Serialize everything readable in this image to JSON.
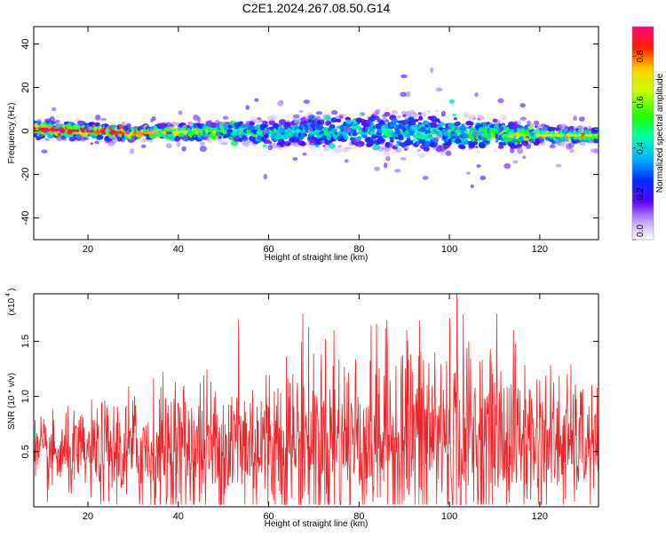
{
  "page": {
    "title": "C2E1.2024.267.08.50.G14"
  },
  "chart_data": [
    {
      "type": "heatmap",
      "title": "C2E1.2024.267.08.50.G14",
      "xlabel": "Height of straight line (km)",
      "ylabel": "Frequency (Hz)",
      "xlim": [
        8,
        133
      ],
      "ylim": [
        -50,
        48
      ],
      "xticks": [
        20,
        40,
        60,
        80,
        100,
        120
      ],
      "yticks": [
        40,
        20,
        0,
        -20,
        -40
      ],
      "colorbar": {
        "label": "Normalized spectral amplitude",
        "range": [
          0.0,
          0.93
        ],
        "ticks": [
          0.0,
          0.2,
          0.4,
          0.6,
          0.8
        ],
        "tick_labels": [
          "0.0",
          "0.2",
          "0.4",
          "0.6",
          "0.8"
        ]
      },
      "band": {
        "description": "energy concentrated near 0 Hz across all heights",
        "center_hz": [
          [
            8,
            1
          ],
          [
            30,
            -1
          ],
          [
            50,
            0
          ],
          [
            60,
            -1
          ],
          [
            80,
            0
          ],
          [
            100,
            -1
          ],
          [
            120,
            -2
          ],
          [
            133,
            -2
          ]
        ],
        "halfwidth_hz": [
          [
            8,
            4
          ],
          [
            30,
            3
          ],
          [
            50,
            4
          ],
          [
            60,
            6
          ],
          [
            70,
            7
          ],
          [
            80,
            8
          ],
          [
            92,
            10
          ],
          [
            100,
            8
          ],
          [
            110,
            7
          ],
          [
            120,
            4
          ],
          [
            133,
            3
          ]
        ],
        "peak_amplitude": [
          [
            8,
            0.9
          ],
          [
            25,
            0.85
          ],
          [
            40,
            0.7
          ],
          [
            50,
            0.55
          ],
          [
            60,
            0.45
          ],
          [
            80,
            0.42
          ],
          [
            100,
            0.45
          ],
          [
            118,
            0.65
          ],
          [
            133,
            0.7
          ]
        ]
      }
    },
    {
      "type": "line",
      "xlabel": "Height of straight line (km)",
      "ylabel": "SNR (10 * v/v)",
      "scale_label": "(x10",
      "scale_exponent": "4",
      "xlim": [
        8,
        133
      ],
      "ylim": [
        0,
        1.93
      ],
      "xticks": [
        20,
        40,
        60,
        80,
        100,
        120
      ],
      "yticks": [
        0.5,
        1.0,
        1.5
      ],
      "ytick_labels": [
        "0.5",
        "1.0",
        "1.5"
      ],
      "series": [
        {
          "color": "#e8262a",
          "n_points": 1250,
          "envelope_max": [
            [
              8,
              0.85
            ],
            [
              20,
              0.95
            ],
            [
              30,
              1.2
            ],
            [
              40,
              1.3
            ],
            [
              50,
              1.35
            ],
            [
              60,
              1.45
            ],
            [
              70,
              1.65
            ],
            [
              80,
              1.6
            ],
            [
              90,
              1.75
            ],
            [
              100,
              1.85
            ],
            [
              110,
              1.5
            ],
            [
              120,
              1.45
            ],
            [
              133,
              1.15
            ]
          ],
          "envelope_mean": [
            [
              8,
              0.45
            ],
            [
              30,
              0.5
            ],
            [
              50,
              0.55
            ],
            [
              70,
              0.6
            ],
            [
              90,
              0.65
            ],
            [
              100,
              0.65
            ],
            [
              120,
              0.6
            ],
            [
              133,
              0.55
            ]
          ],
          "peaks": [
            {
              "x": 53.3,
              "y": 1.7
            },
            {
              "x": 67.5,
              "y": 1.75
            },
            {
              "x": 74.5,
              "y": 1.6
            },
            {
              "x": 90.6,
              "y": 1.6
            },
            {
              "x": 101.7,
              "y": 1.93
            },
            {
              "x": 110.5,
              "y": 1.75
            },
            {
              "x": 114.2,
              "y": 1.6
            }
          ]
        }
      ]
    }
  ]
}
